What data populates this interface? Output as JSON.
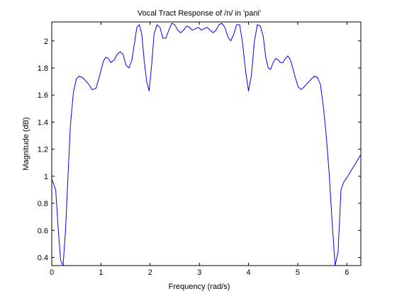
{
  "chart_data": {
    "type": "line",
    "title": "Vocal Tract Response of /n/ in 'pani'",
    "xlabel": "Frequency (rad/s)",
    "ylabel": "Magnitude (dB)",
    "xlim": [
      0,
      6.2832
    ],
    "ylim": [
      0.34,
      2.14
    ],
    "xticks": [
      0,
      1,
      2,
      3,
      4,
      5,
      6
    ],
    "xtick_labels": [
      "0",
      "1",
      "2",
      "3",
      "4",
      "5",
      "6"
    ],
    "yticks": [
      0.4,
      0.6,
      0.8,
      1.0,
      1.2,
      1.4,
      1.6,
      1.8,
      2.0
    ],
    "ytick_labels": [
      "0.4",
      "0.6",
      "0.8",
      "1",
      "1.2",
      "1.4",
      "1.6",
      "1.8",
      "2"
    ],
    "grid": false,
    "line_color": "#0000ff",
    "series": [
      {
        "x": [
          0,
          0.08,
          0.13,
          0.18,
          0.23,
          0.28,
          0.33,
          0.38,
          0.44,
          0.5,
          0.56,
          0.62,
          0.68,
          0.75,
          0.82,
          0.9,
          0.97,
          1.05,
          1.1,
          1.15,
          1.2,
          1.27,
          1.33,
          1.39,
          1.45,
          1.51,
          1.57,
          1.63,
          1.68,
          1.73,
          1.78,
          1.83,
          1.88,
          1.93,
          1.98,
          2.03,
          2.08,
          2.14,
          2.2,
          2.26,
          2.32,
          2.38,
          2.44,
          2.5,
          2.56,
          2.62,
          2.68,
          2.74,
          2.8,
          2.86,
          2.92,
          2.98,
          3.04,
          3.1,
          3.16,
          3.22,
          3.28,
          3.34,
          3.4,
          3.46,
          3.52,
          3.58,
          3.64,
          3.7,
          3.76,
          3.82,
          3.88,
          3.94,
          4.0,
          4.06,
          4.12,
          4.18,
          4.24,
          4.3,
          4.35,
          4.4,
          4.45,
          4.5,
          4.55,
          4.6,
          4.65,
          4.7,
          4.75,
          4.8,
          4.85,
          4.9,
          4.95,
          5.01,
          5.07,
          5.13,
          5.18,
          5.23,
          5.28,
          5.34,
          5.4,
          5.46,
          5.52,
          5.58,
          5.64,
          5.7,
          5.76,
          5.82,
          5.88,
          5.94,
          6.0,
          6.05,
          6.1,
          6.15,
          6.2,
          6.25,
          6.2832
        ],
        "y": [
          0.98,
          0.9,
          0.62,
          0.38,
          0.34,
          0.6,
          1.0,
          1.38,
          1.62,
          1.72,
          1.74,
          1.73,
          1.71,
          1.68,
          1.64,
          1.65,
          1.74,
          1.85,
          1.88,
          1.87,
          1.84,
          1.86,
          1.9,
          1.92,
          1.9,
          1.82,
          1.8,
          1.86,
          1.98,
          2.1,
          2.12,
          2.05,
          1.85,
          1.7,
          1.63,
          1.82,
          2.05,
          2.12,
          2.1,
          2.02,
          2.02,
          2.08,
          2.13,
          2.12,
          2.08,
          2.06,
          2.08,
          2.11,
          2.1,
          2.08,
          2.09,
          2.1,
          2.08,
          2.09,
          2.1,
          2.08,
          2.06,
          2.08,
          2.12,
          2.13,
          2.1,
          2.03,
          2.0,
          2.05,
          2.12,
          2.12,
          1.98,
          1.78,
          1.63,
          1.75,
          2.0,
          2.12,
          2.11,
          2.03,
          1.88,
          1.8,
          1.79,
          1.84,
          1.87,
          1.86,
          1.84,
          1.84,
          1.87,
          1.89,
          1.86,
          1.8,
          1.73,
          1.66,
          1.64,
          1.66,
          1.68,
          1.7,
          1.72,
          1.74,
          1.73,
          1.68,
          1.52,
          1.3,
          1.02,
          0.66,
          0.34,
          0.44,
          0.9,
          0.96,
          0.99,
          1.02,
          1.05,
          1.08,
          1.11,
          1.14,
          1.16
        ]
      }
    ]
  }
}
